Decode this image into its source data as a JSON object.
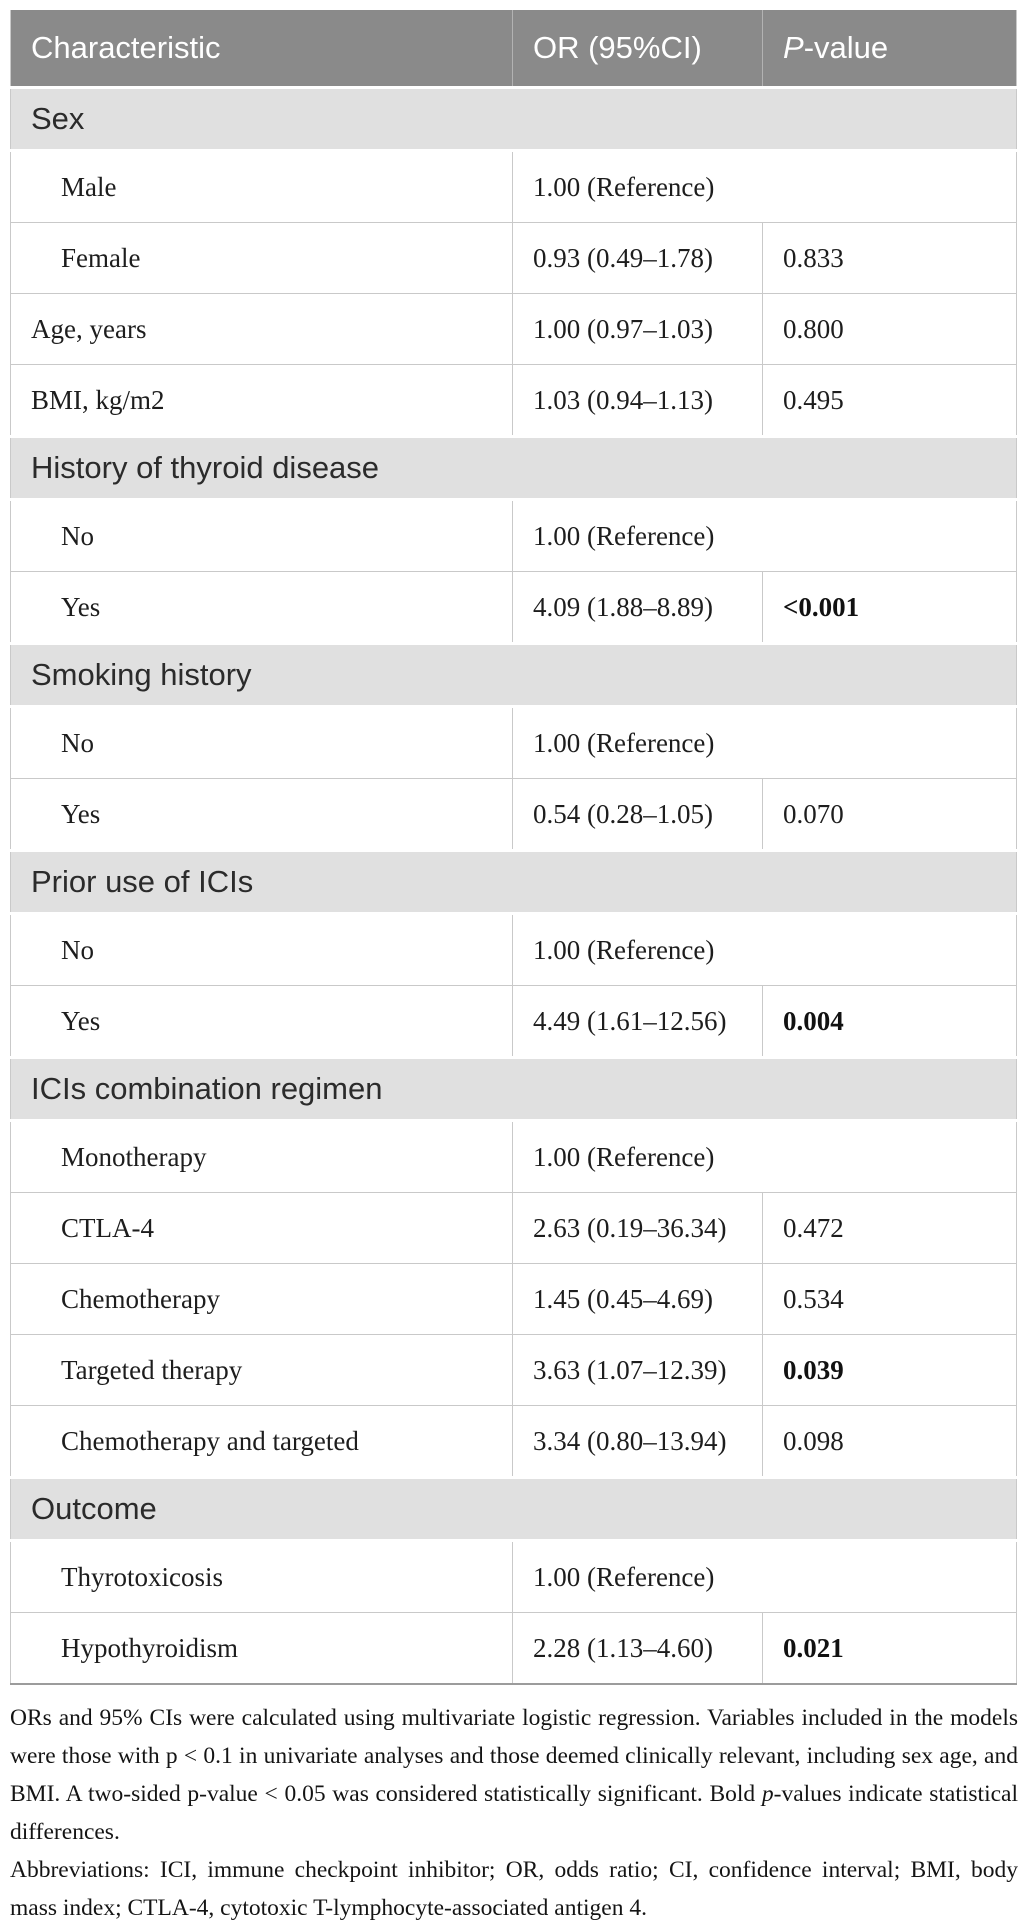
{
  "table": {
    "columns": {
      "characteristic": "Characteristic",
      "or_ci": "OR (95%CI)",
      "p_italic": "P",
      "p_rest": "-value"
    },
    "rows": [
      {
        "type": "section",
        "label": "Sex"
      },
      {
        "type": "data",
        "indent": true,
        "label": "Male",
        "or": "1.00 (Reference)",
        "p": "",
        "reference": true
      },
      {
        "type": "data",
        "indent": true,
        "label": "Female",
        "or": "0.93 (0.49–1.78)",
        "p": "0.833",
        "p_bold": false
      },
      {
        "type": "data",
        "indent": false,
        "label": "Age, years",
        "or": "1.00 (0.97–1.03)",
        "p": "0.800",
        "p_bold": false
      },
      {
        "type": "data",
        "indent": false,
        "label": "BMI, kg/m2",
        "or": "1.03 (0.94–1.13)",
        "p": "0.495",
        "p_bold": false
      },
      {
        "type": "section",
        "label": "History of thyroid disease"
      },
      {
        "type": "data",
        "indent": true,
        "label": "No",
        "or": "1.00 (Reference)",
        "p": "",
        "reference": true
      },
      {
        "type": "data",
        "indent": true,
        "label": "Yes",
        "or": "4.09 (1.88–8.89)",
        "p": "<0.001",
        "p_bold": true
      },
      {
        "type": "section",
        "label": "Smoking history"
      },
      {
        "type": "data",
        "indent": true,
        "label": "No",
        "or": "1.00 (Reference)",
        "p": "",
        "reference": true
      },
      {
        "type": "data",
        "indent": true,
        "label": "Yes",
        "or": "0.54 (0.28–1.05)",
        "p": "0.070",
        "p_bold": false
      },
      {
        "type": "section",
        "label": "Prior use of ICIs"
      },
      {
        "type": "data",
        "indent": true,
        "label": "No",
        "or": "1.00 (Reference)",
        "p": "",
        "reference": true
      },
      {
        "type": "data",
        "indent": true,
        "label": "Yes",
        "or": "4.49 (1.61–12.56)",
        "p": "0.004",
        "p_bold": true
      },
      {
        "type": "section",
        "label": "ICIs combination regimen"
      },
      {
        "type": "data",
        "indent": true,
        "label": "Monotherapy",
        "or": "1.00 (Reference)",
        "p": "",
        "reference": true
      },
      {
        "type": "data",
        "indent": true,
        "label": "CTLA-4",
        "or": "2.63 (0.19–36.34)",
        "p": "0.472",
        "p_bold": false
      },
      {
        "type": "data",
        "indent": true,
        "label": "Chemotherapy",
        "or": "1.45 (0.45–4.69)",
        "p": "0.534",
        "p_bold": false
      },
      {
        "type": "data",
        "indent": true,
        "label": "Targeted therapy",
        "or": "3.63 (1.07–12.39)",
        "p": "0.039",
        "p_bold": true
      },
      {
        "type": "data",
        "indent": true,
        "label": "Chemotherapy and targeted",
        "or": "3.34 (0.80–13.94)",
        "p": "0.098",
        "p_bold": false
      },
      {
        "type": "section",
        "label": "Outcome"
      },
      {
        "type": "data",
        "indent": true,
        "label": "Thyrotoxicosis",
        "or": "1.00 (Reference)",
        "p": "",
        "reference": true
      },
      {
        "type": "data",
        "indent": true,
        "label": "Hypothyroidism",
        "or": "2.28 (1.13–4.60)",
        "p": "0.021",
        "p_bold": true
      }
    ]
  },
  "notes": {
    "methods_part1": "ORs and 95% CIs were calculated using multivariate logistic regression. Variables included in the models were those with p < 0.1 in univariate analyses and those deemed clinically relevant, including sex age, and BMI. A two-sided p-value < 0.05 was considered statistically significant. Bold ",
    "methods_italic_p": "p",
    "methods_part2": "-values indicate statistical differences.",
    "abbreviations": "Abbreviations: ICI, immune checkpoint inhibitor; OR, odds ratio; CI, confidence interval; BMI, body mass index; CTLA-4, cytotoxic T-lymphocyte-associated antigen 4."
  },
  "colors": {
    "header_bg": "#8a8a8a",
    "header_text": "#ffffff",
    "section_bg": "#e0e0e0",
    "row_border": "#c9c9c9",
    "body_text": "#1d1d1d"
  }
}
